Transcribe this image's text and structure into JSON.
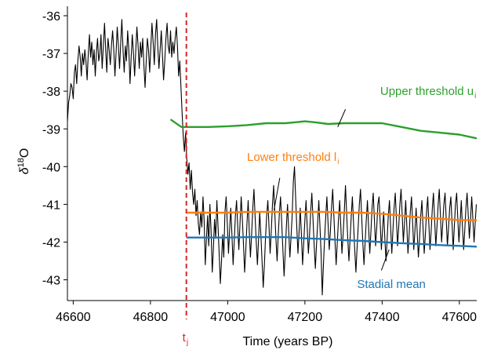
{
  "chart_data": {
    "type": "line",
    "xlabel": "Time (years BP)",
    "ylabel_main": "δ",
    "ylabel_sup": "18",
    "ylabel_tail": "O",
    "xlim": [
      46585,
      47645
    ],
    "ylim": [
      -43.55,
      -35.75
    ],
    "x_ticks": [
      46600,
      46800,
      47000,
      47200,
      47400,
      47600
    ],
    "x_tick_labels": [
      "46600",
      "46800",
      "47000",
      "47200",
      "47400",
      "47600"
    ],
    "y_ticks": [
      -36,
      -37,
      -38,
      -39,
      -40,
      -41,
      -42,
      -43
    ],
    "y_tick_labels": [
      "-36",
      "-37",
      "-38",
      "-39",
      "-40",
      "-41",
      "-42",
      "-43"
    ],
    "grid": false,
    "legend": "none",
    "colors": {
      "record": "#000000",
      "upper": "#2ca02c",
      "lower": "#ff7f0e",
      "mean": "#1f77b4",
      "tj": "#d62728"
    },
    "series": [
      {
        "name": "Upper threshold u",
        "sub": "i",
        "color": "#2ca02c",
        "x": [
          46852,
          46880,
          46900,
          46950,
          47000,
          47050,
          47100,
          47150,
          47200,
          47230,
          47260,
          47300,
          47350,
          47400,
          47450,
          47500,
          47550,
          47600,
          47645
        ],
        "y": [
          -38.75,
          -38.95,
          -38.95,
          -38.95,
          -38.93,
          -38.9,
          -38.85,
          -38.85,
          -38.8,
          -38.83,
          -38.87,
          -38.85,
          -38.85,
          -38.85,
          -38.95,
          -39.05,
          -39.1,
          -39.15,
          -39.25
        ]
      },
      {
        "name": "Lower threshold l",
        "sub": "i",
        "color": "#ff7f0e",
        "x": [
          46893,
          46950,
          47000,
          47050,
          47100,
          47150,
          47200,
          47250,
          47300,
          47350,
          47400,
          47450,
          47500,
          47550,
          47600,
          47645
        ],
        "y": [
          -41.22,
          -41.22,
          -41.22,
          -41.2,
          -41.2,
          -41.2,
          -41.2,
          -41.2,
          -41.22,
          -41.22,
          -41.25,
          -41.3,
          -41.35,
          -41.38,
          -41.42,
          -41.42
        ]
      },
      {
        "name": "Stadial mean",
        "color": "#1f77b4",
        "x": [
          46893,
          46950,
          47000,
          47050,
          47100,
          47150,
          47200,
          47250,
          47300,
          47350,
          47400,
          47450,
          47500,
          47550,
          47600,
          47645
        ],
        "y": [
          -41.88,
          -41.88,
          -41.88,
          -41.87,
          -41.87,
          -41.87,
          -41.9,
          -41.92,
          -41.95,
          -41.97,
          -42.0,
          -42.03,
          -42.05,
          -42.08,
          -42.1,
          -42.12
        ]
      }
    ],
    "record": {
      "name": "δ18O record",
      "x_start": 46585,
      "x_step": 3,
      "y": [
        -38.8,
        -38.3,
        -38.1,
        -37.8,
        -37.9,
        -38.2,
        -37.5,
        -37.3,
        -37.8,
        -37.2,
        -36.8,
        -37.1,
        -37.6,
        -37.0,
        -37.3,
        -36.9,
        -37.2,
        -37.7,
        -37.0,
        -36.5,
        -37.1,
        -36.7,
        -37.3,
        -36.9,
        -37.6,
        -37.0,
        -36.6,
        -37.2,
        -37.0,
        -36.5,
        -37.4,
        -36.8,
        -36.2,
        -36.9,
        -37.5,
        -36.6,
        -36.9,
        -37.3,
        -36.8,
        -36.4,
        -36.9,
        -37.6,
        -37.0,
        -36.3,
        -36.8,
        -37.4,
        -36.7,
        -36.1,
        -36.9,
        -37.5,
        -36.8,
        -37.2,
        -36.4,
        -36.9,
        -37.8,
        -37.1,
        -36.5,
        -37.0,
        -37.6,
        -36.9,
        -36.3,
        -36.8,
        -37.4,
        -36.7,
        -37.1,
        -36.6,
        -37.3,
        -37.9,
        -37.2,
        -36.6,
        -36.9,
        -37.5,
        -36.8,
        -36.2,
        -36.7,
        -37.3,
        -36.5,
        -36.1,
        -36.8,
        -37.4,
        -36.9,
        -36.4,
        -37.0,
        -37.7,
        -37.2,
        -36.6,
        -36.2,
        -36.8,
        -37.0,
        -36.4,
        -37.1,
        -36.7,
        -37.0,
        -36.6,
        -36.3,
        -36.8,
        -37.6,
        -37.2,
        -37.9,
        -38.6,
        -39.2,
        -39.6,
        -39.1,
        -39.8,
        -40.2,
        -39.9,
        -40.6,
        -40.1,
        -40.7,
        -41.0,
        -40.6,
        -41.3,
        -40.9,
        -41.5,
        -41.8,
        -41.2,
        -41.6,
        -40.8,
        -41.4,
        -42.6,
        -41.9,
        -41.3,
        -42.1,
        -41.0,
        -41.7,
        -42.8,
        -42.2,
        -41.4,
        -41.9,
        -40.9,
        -41.6,
        -42.3,
        -43.1,
        -42.5,
        -41.8,
        -42.4,
        -41.2,
        -40.8,
        -41.5,
        -42.3,
        -41.7,
        -41.1,
        -41.8,
        -42.6,
        -42.0,
        -41.3,
        -40.9,
        -41.6,
        -42.2,
        -41.5,
        -40.8,
        -41.4,
        -42.1,
        -42.8,
        -42.2,
        -41.5,
        -40.9,
        -41.7,
        -42.4,
        -41.8,
        -41.1,
        -40.6,
        -41.3,
        -42.0,
        -42.6,
        -41.9,
        -41.2,
        -41.8,
        -42.5,
        -43.2,
        -42.6,
        -41.9,
        -41.3,
        -40.9,
        -41.6,
        -42.3,
        -41.7,
        -41.0,
        -40.5,
        -41.2,
        -41.9,
        -42.5,
        -41.8,
        -41.2,
        -40.8,
        -41.5,
        -42.2,
        -42.9,
        -42.3,
        -41.6,
        -41.0,
        -41.7,
        -42.4,
        -41.9,
        -41.3,
        -40.4,
        -40.0,
        -40.8,
        -41.6,
        -42.3,
        -41.7,
        -41.1,
        -41.8,
        -42.6,
        -42.0,
        -41.4,
        -40.9,
        -41.6,
        -42.3,
        -41.8,
        -41.2,
        -40.7,
        -41.4,
        -42.1,
        -42.7,
        -42.1,
        -41.5,
        -40.9,
        -41.6,
        -42.3,
        -43.4,
        -42.6,
        -41.9,
        -41.3,
        -40.8,
        -41.5,
        -42.2,
        -41.7,
        -41.1,
        -40.6,
        -41.3,
        -42.0,
        -42.6,
        -42.0,
        -41.4,
        -40.9,
        -41.6,
        -42.3,
        -41.8,
        -41.2,
        -40.5,
        -41.2,
        -41.9,
        -42.5,
        -41.9,
        -41.3,
        -40.8,
        -41.5,
        -42.2,
        -42.8,
        -42.2,
        -41.6,
        -41.0,
        -40.6,
        -41.3,
        -42.0,
        -42.6,
        -42.0,
        -41.4,
        -40.9,
        -41.6,
        -42.3,
        -41.7,
        -41.1,
        -40.7,
        -41.4,
        -42.1,
        -41.6,
        -41.0,
        -40.8,
        -41.5,
        -42.2,
        -41.7,
        -41.2,
        -41.9,
        -42.5,
        -41.9,
        -41.3,
        -40.9,
        -41.6,
        -42.3,
        -41.7,
        -41.1,
        -40.7,
        -41.4,
        -42.1,
        -41.6,
        -41.0,
        -40.6,
        -41.3,
        -42.0,
        -41.5,
        -40.9,
        -41.6,
        -42.3,
        -41.8,
        -41.2,
        -40.8,
        -41.5,
        -42.2,
        -41.7,
        -41.1,
        -41.8,
        -42.4,
        -41.9,
        -41.3,
        -40.9,
        -41.6,
        -42.3,
        -41.8,
        -41.2,
        -40.8,
        -41.5,
        -42.2,
        -41.7,
        -41.1,
        -40.7,
        -41.4,
        -42.1,
        -41.6,
        -41.0,
        -40.6,
        -41.3,
        -42.0,
        -41.5,
        -41.0,
        -40.7,
        -41.4,
        -42.1,
        -41.6,
        -41.1,
        -40.8,
        -41.5,
        -42.2,
        -41.6,
        -41.0,
        -40.7,
        -41.4,
        -42.0,
        -41.5,
        -40.9,
        -41.6,
        -42.2,
        -41.7,
        -41.1,
        -40.7,
        -41.3,
        -41.9,
        -41.4,
        -40.8,
        -41.4,
        -42.0,
        -41.5,
        -41.0
      ]
    },
    "tj_x": 46893,
    "tj_label": "t",
    "tj_sub": "j",
    "annotations": [
      {
        "key": "upper",
        "text": "Upper threshold u",
        "sub": "i",
        "color": "#2ca02c",
        "tx": 47395,
        "ty": -38.1,
        "ax1": 47305,
        "ay1": -38.48,
        "ax2": 47285,
        "ay2": -38.95
      },
      {
        "key": "lower",
        "text": "Lower threshold l",
        "sub": "i",
        "color": "#ff7f0e",
        "tx": 47050,
        "ty": -39.85,
        "ax1": 47135,
        "ay1": -40.3,
        "ax2": 47120,
        "ay2": -41.15
      },
      {
        "key": "mean",
        "text": "Stadial mean",
        "sub": "",
        "color": "#1f77b4",
        "tx": 47335,
        "ty": -43.22,
        "ax1": 47418,
        "ay1": -42.2,
        "ax2": 47398,
        "ay2": -42.75
      }
    ]
  }
}
